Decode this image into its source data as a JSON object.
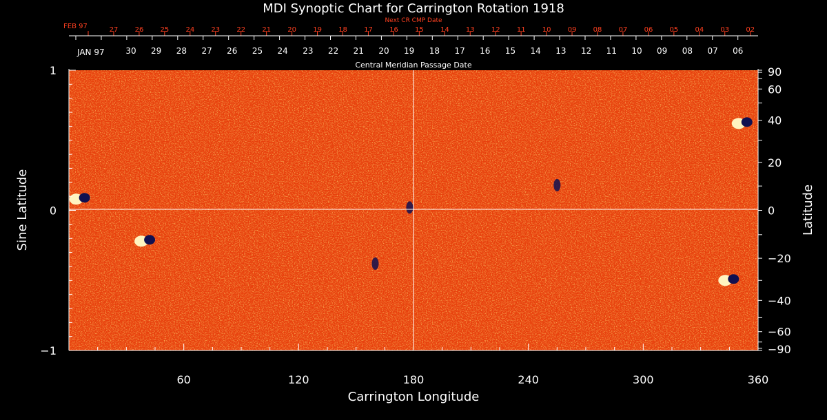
{
  "chart_data": {
    "type": "heatmap",
    "title": "MDI Synoptic Chart for Carrington Rotation 1918",
    "xlabel": "Carrington Longitude",
    "ylabel_left": "Sine Latitude",
    "ylabel_right": "Latitude",
    "xlim": [
      0,
      360
    ],
    "ylim_sine": [
      -1,
      1
    ],
    "x_ticks": [
      60,
      120,
      180,
      240,
      300,
      360
    ],
    "left_y_ticks": [
      {
        "value": 1,
        "label": "1"
      },
      {
        "value": 0,
        "label": "0"
      },
      {
        "value": -1,
        "label": "−1"
      }
    ],
    "right_lat_ticks": [
      {
        "lat": 90,
        "label": "90"
      },
      {
        "lat": 60,
        "label": "60"
      },
      {
        "lat": 40,
        "label": "40"
      },
      {
        "lat": 20,
        "label": "20"
      },
      {
        "lat": 0,
        "label": "0"
      },
      {
        "lat": -20,
        "label": "−20"
      },
      {
        "lat": -40,
        "label": "−40"
      },
      {
        "lat": -60,
        "label": "−60"
      },
      {
        "lat": -90,
        "label": "−90"
      }
    ],
    "top_axes": {
      "next_cr_label": "Next CR CMP Date",
      "next_cr_month": "FEB 97",
      "next_cr_dates": [
        "27",
        "26",
        "25",
        "24",
        "23",
        "22",
        "21",
        "20",
        "19",
        "18",
        "17",
        "16",
        "15",
        "14",
        "13",
        "12",
        "11",
        "10",
        "09",
        "08",
        "07",
        "06",
        "05",
        "04",
        "03",
        "02"
      ],
      "cmp_month": "JAN 97",
      "cmp_dates": [
        "30",
        "29",
        "28",
        "27",
        "26",
        "25",
        "24",
        "23",
        "22",
        "21",
        "20",
        "19",
        "18",
        "17",
        "16",
        "15",
        "14",
        "13",
        "12",
        "11",
        "10",
        "09",
        "08",
        "07",
        "06"
      ],
      "cmp_label": "Central Meridian Passage Date"
    },
    "colormap": {
      "background": "#e8400c",
      "positive": "#fff4c0",
      "negative": "#101050",
      "axis": "#ffffff",
      "top_axis": "#ff4020"
    },
    "active_regions": [
      {
        "lon": 6,
        "sinlat": 0.08,
        "polarity": "bipolar"
      },
      {
        "lon": 40,
        "sinlat": -0.22,
        "polarity": "bipolar"
      },
      {
        "lon": 160,
        "sinlat": -0.38,
        "polarity": "negative"
      },
      {
        "lon": 178,
        "sinlat": 0.02,
        "polarity": "negative"
      },
      {
        "lon": 255,
        "sinlat": 0.18,
        "polarity": "negative"
      },
      {
        "lon": 345,
        "sinlat": -0.5,
        "polarity": "bipolar"
      },
      {
        "lon": 352,
        "sinlat": 0.62,
        "polarity": "bipolar"
      }
    ]
  }
}
